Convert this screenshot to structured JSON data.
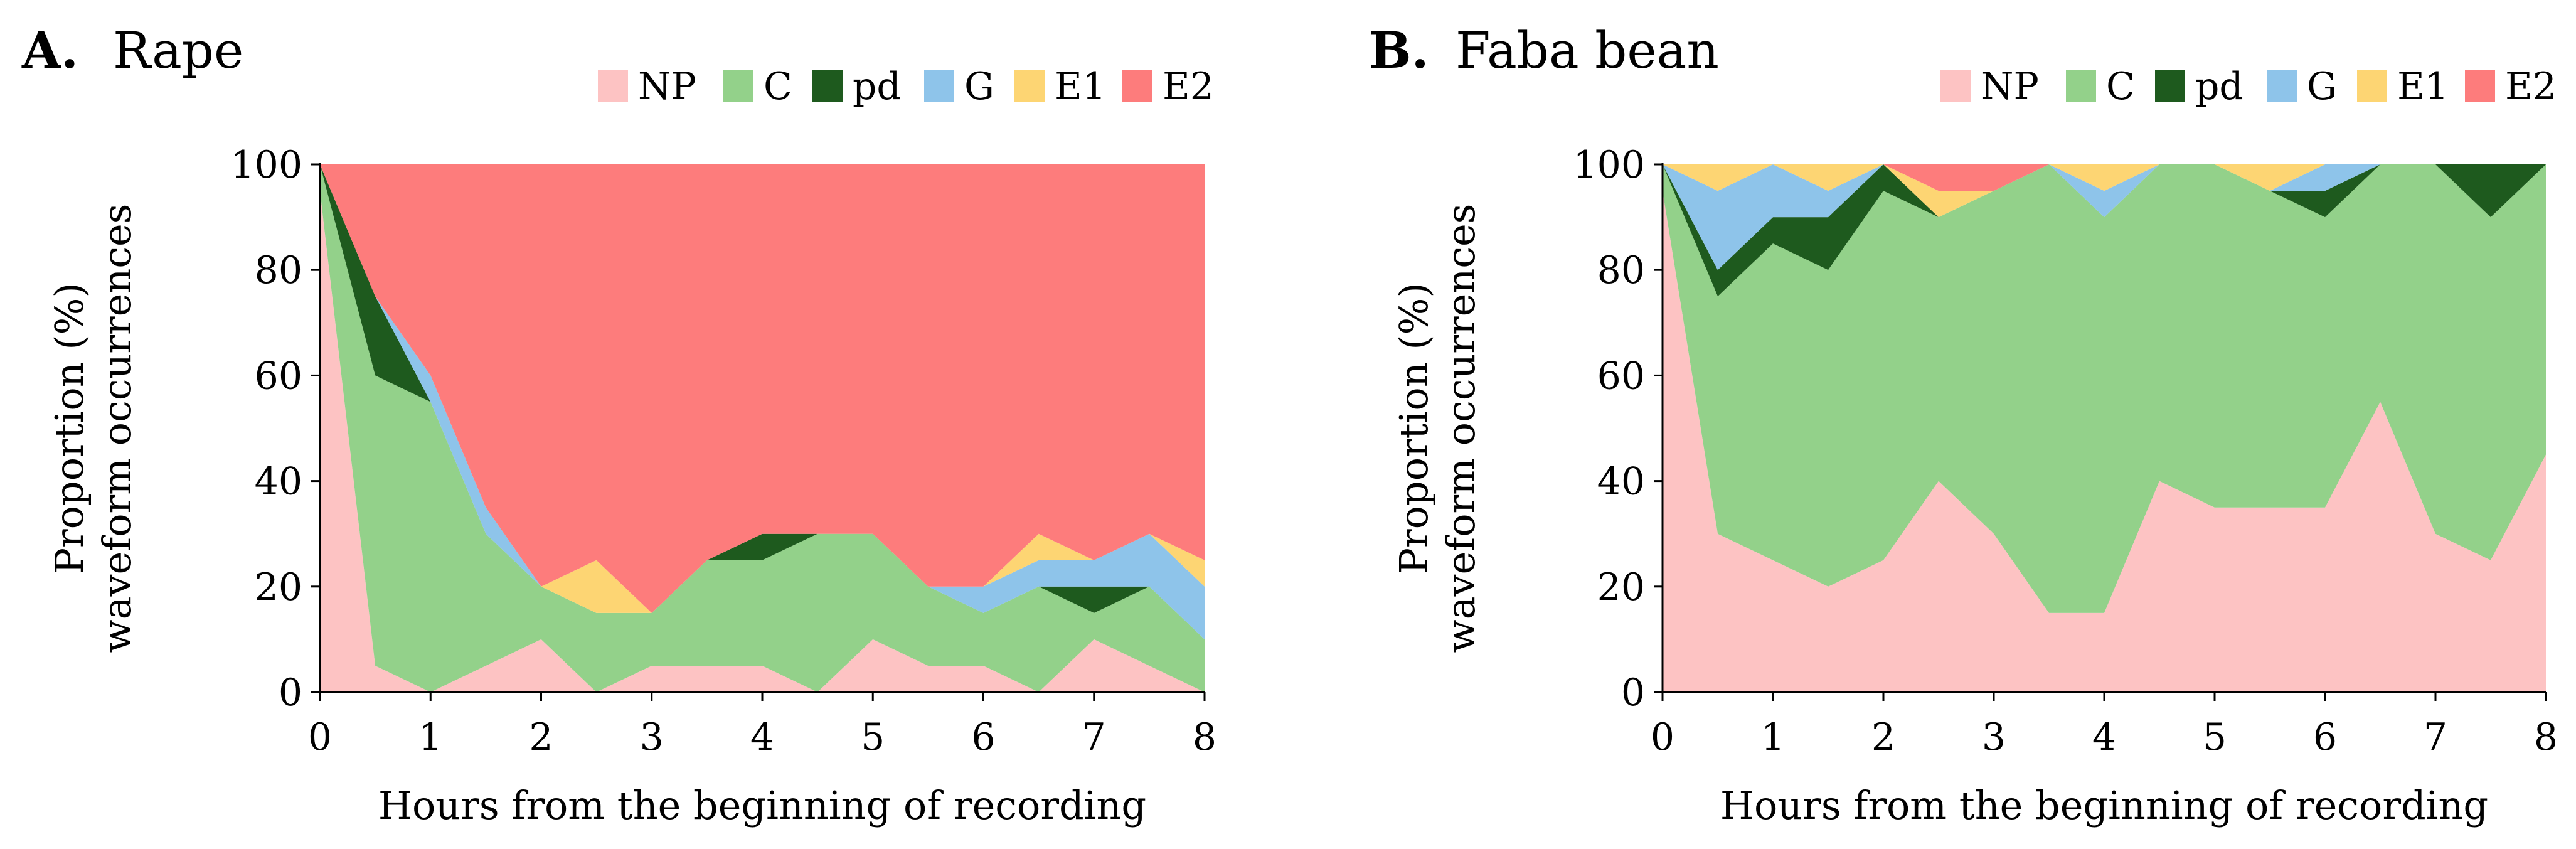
{
  "colors": {
    "NP": "#FDC3C3",
    "C": "#93D18A",
    "pd": "#1E5A1E",
    "G": "#8EC4EA",
    "E1": "#FDD573",
    "E2": "#FD7C7C"
  },
  "chart_data": [
    {
      "type": "area",
      "stacked": true,
      "panel": "A.",
      "title": "Rape",
      "xlabel": "Hours from the beginning of recording",
      "ylabel_lines": [
        "Proportion (%)",
        "waveform occurrences"
      ],
      "xlim": [
        0,
        8
      ],
      "ylim": [
        0,
        100
      ],
      "xticks": [
        0,
        1,
        2,
        3,
        4,
        5,
        6,
        7,
        8
      ],
      "yticks": [
        0,
        20,
        40,
        60,
        80,
        100
      ],
      "legend_position": "top-right",
      "x": [
        0,
        0.5,
        1,
        1.5,
        2,
        2.5,
        3,
        3.5,
        4,
        4.5,
        5,
        5.5,
        6,
        6.5,
        7,
        7.5,
        8
      ],
      "series": [
        {
          "name": "NP",
          "values": [
            95,
            5,
            0,
            5,
            10,
            0,
            5,
            5,
            5,
            0,
            10,
            5,
            5,
            0,
            10,
            5,
            0
          ]
        },
        {
          "name": "C",
          "values": [
            5,
            55,
            55,
            25,
            10,
            15,
            10,
            20,
            20,
            30,
            20,
            15,
            10,
            20,
            5,
            15,
            10
          ]
        },
        {
          "name": "pd",
          "values": [
            0,
            15,
            0,
            0,
            0,
            0,
            0,
            0,
            5,
            0,
            0,
            0,
            0,
            0,
            5,
            0,
            0
          ]
        },
        {
          "name": "G",
          "values": [
            0,
            0,
            5,
            5,
            0,
            0,
            0,
            0,
            0,
            0,
            0,
            0,
            5,
            5,
            5,
            10,
            10
          ]
        },
        {
          "name": "E1",
          "values": [
            0,
            0,
            0,
            0,
            0,
            10,
            0,
            0,
            0,
            0,
            0,
            0,
            0,
            5,
            0,
            0,
            5
          ]
        },
        {
          "name": "E2",
          "values": [
            0,
            25,
            40,
            65,
            80,
            75,
            85,
            75,
            70,
            70,
            70,
            80,
            80,
            70,
            75,
            70,
            75
          ]
        }
      ]
    },
    {
      "type": "area",
      "stacked": true,
      "panel": "B.",
      "title": "Faba bean",
      "xlabel": "Hours from the beginning of recording",
      "ylabel_lines": [
        "Proportion (%)",
        "waveform occurrences"
      ],
      "xlim": [
        0,
        8
      ],
      "ylim": [
        0,
        100
      ],
      "xticks": [
        0,
        1,
        2,
        3,
        4,
        5,
        6,
        7,
        8
      ],
      "yticks": [
        0,
        20,
        40,
        60,
        80,
        100
      ],
      "legend_position": "top-right",
      "x": [
        0,
        0.5,
        1,
        1.5,
        2,
        2.5,
        3,
        3.5,
        4,
        4.5,
        5,
        5.5,
        6,
        6.5,
        7,
        7.5,
        8
      ],
      "series": [
        {
          "name": "NP",
          "values": [
            95,
            30,
            25,
            20,
            25,
            40,
            30,
            15,
            15,
            40,
            35,
            35,
            35,
            55,
            30,
            25,
            45
          ]
        },
        {
          "name": "C",
          "values": [
            5,
            45,
            60,
            60,
            70,
            50,
            65,
            85,
            75,
            60,
            65,
            60,
            55,
            45,
            70,
            65,
            55
          ]
        },
        {
          "name": "pd",
          "values": [
            0,
            5,
            5,
            10,
            5,
            0,
            0,
            0,
            0,
            0,
            0,
            0,
            5,
            0,
            0,
            10,
            0
          ]
        },
        {
          "name": "G",
          "values": [
            0,
            15,
            10,
            5,
            0,
            0,
            0,
            0,
            5,
            0,
            0,
            0,
            5,
            0,
            0,
            0,
            0
          ]
        },
        {
          "name": "E1",
          "values": [
            0,
            5,
            0,
            5,
            0,
            5,
            0,
            0,
            5,
            0,
            0,
            5,
            0,
            0,
            0,
            0,
            0
          ]
        },
        {
          "name": "E2",
          "values": [
            0,
            0,
            0,
            0,
            0,
            5,
            5,
            0,
            0,
            0,
            0,
            0,
            0,
            0,
            0,
            0,
            0
          ]
        }
      ]
    }
  ]
}
